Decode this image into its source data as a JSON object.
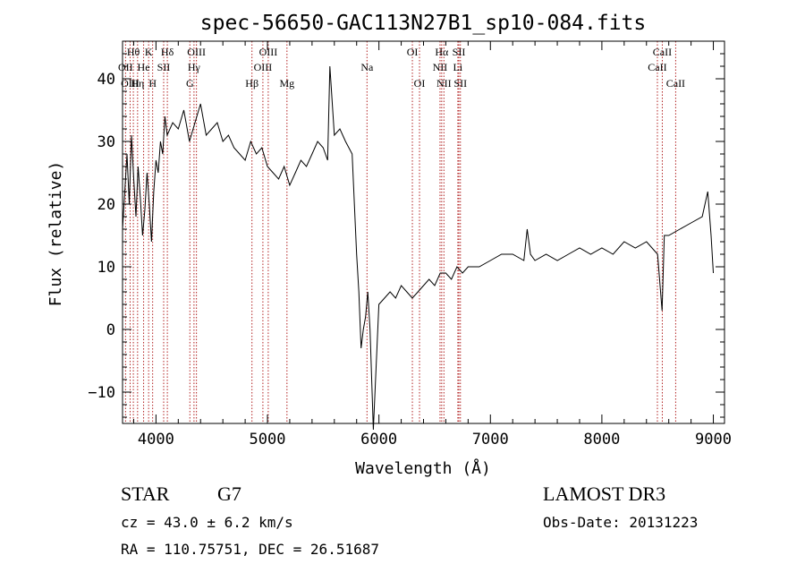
{
  "chart_data": {
    "type": "line",
    "title": "spec-56650-GAC113N27B1_sp10-084.fits",
    "xlabel": "Wavelength (Å)",
    "ylabel": "Flux (relative)",
    "xlim": [
      3700,
      9100
    ],
    "ylim": [
      -15,
      46
    ],
    "xticks": [
      "4000",
      "5000",
      "6000",
      "7000",
      "8000",
      "9000"
    ],
    "xtick_values": [
      4000,
      5000,
      6000,
      7000,
      8000,
      9000
    ],
    "yticks": [
      "−10",
      "0",
      "10",
      "20",
      "30",
      "40"
    ],
    "ytick_values": [
      -10,
      0,
      10,
      20,
      30,
      40
    ],
    "line_color": "#000000",
    "marker_color": "#b22222",
    "grid": false,
    "series": [
      {
        "x": [
          3700,
          3720,
          3740,
          3760,
          3780,
          3800,
          3820,
          3840,
          3860,
          3880,
          3900,
          3920,
          3940,
          3960,
          3980,
          4000,
          4020,
          4040,
          4060,
          4080,
          4100,
          4150,
          4200,
          4250,
          4300,
          4350,
          4400,
          4450,
          4500,
          4550,
          4600,
          4650,
          4700,
          4750,
          4800,
          4850,
          4900,
          4950,
          5000,
          5050,
          5100,
          5150,
          5200,
          5250,
          5300,
          5350,
          5400,
          5450,
          5500,
          5540,
          5560,
          5600,
          5650,
          5700,
          5730,
          5760,
          5780,
          5800,
          5820,
          5840,
          5860,
          5880,
          5900,
          5920,
          5950,
          6000,
          6050,
          6100,
          6150,
          6200,
          6250,
          6300,
          6350,
          6400,
          6450,
          6500,
          6550,
          6600,
          6650,
          6700,
          6750,
          6800,
          6900,
          7000,
          7100,
          7200,
          7300,
          7330,
          7360,
          7400,
          7500,
          7600,
          7700,
          7800,
          7900,
          8000,
          8100,
          8200,
          8300,
          8400,
          8500,
          8540,
          8560,
          8600,
          8700,
          8800,
          8900,
          8950,
          8980,
          9000
        ],
        "y": [
          16,
          22,
          28,
          20,
          31,
          24,
          18,
          26,
          21,
          15,
          19,
          25,
          20,
          14,
          22,
          27,
          25,
          30,
          28,
          34,
          31,
          33,
          32,
          35,
          30,
          33,
          36,
          31,
          32,
          33,
          30,
          31,
          29,
          28,
          27,
          30,
          28,
          29,
          26,
          25,
          24,
          26,
          23,
          25,
          27,
          26,
          28,
          30,
          29,
          27,
          42,
          31,
          32,
          30,
          29,
          28,
          20,
          12,
          6,
          -3,
          0,
          2,
          6,
          0,
          -16,
          4,
          5,
          6,
          5,
          7,
          6,
          5,
          6,
          7,
          8,
          7,
          9,
          9,
          8,
          10,
          9,
          10,
          10,
          11,
          12,
          12,
          11,
          16,
          12,
          11,
          12,
          11,
          12,
          13,
          12,
          13,
          12,
          14,
          13,
          14,
          12,
          3,
          15,
          15,
          16,
          17,
          18,
          22,
          15,
          9
        ]
      }
    ],
    "line_markers": {
      "top": [
        {
          "label": "Hθ",
          "x": 3797
        },
        {
          "label": "K",
          "x": 3934
        },
        {
          "label": "Hδ",
          "x": 4102
        },
        {
          "label": "OIII",
          "x": 4363
        },
        {
          "label": "OIII",
          "x": 5007
        },
        {
          "label": "OI",
          "x": 6300
        },
        {
          "label": "Hα",
          "x": 6563
        },
        {
          "label": "SII",
          "x": 6717
        },
        {
          "label": "CaII",
          "x": 8542
        }
      ],
      "mid": [
        {
          "label": "OII",
          "x": 3727
        },
        {
          "label": "He",
          "x": 3889
        },
        {
          "label": "SII",
          "x": 4069
        },
        {
          "label": "Hγ",
          "x": 4341
        },
        {
          "label": "OIII",
          "x": 4959
        },
        {
          "label": "Na",
          "x": 5893
        },
        {
          "label": "NII",
          "x": 6548
        },
        {
          "label": "Li",
          "x": 6708
        },
        {
          "label": "CaII",
          "x": 8498
        }
      ],
      "low": [
        {
          "label": "OIII",
          "x": 3768
        },
        {
          "label": "Hη",
          "x": 3835
        },
        {
          "label": "H",
          "x": 3970
        },
        {
          "label": "G",
          "x": 4304
        },
        {
          "label": "Hβ",
          "x": 4861
        },
        {
          "label": "Mg",
          "x": 5175
        },
        {
          "label": "OI",
          "x": 6364
        },
        {
          "label": "NII",
          "x": 6583
        },
        {
          "label": "SII",
          "x": 6731
        },
        {
          "label": "CaII",
          "x": 8662
        }
      ]
    }
  },
  "info": {
    "class_label": "STAR",
    "subclass_label": "G7",
    "cz_text": "cz = 43.0 ± 6.2 km/s",
    "radec_text": "RA = 110.75751, DEC =  26.51687",
    "survey_label": "LAMOST DR3",
    "obs_date_text": "Obs-Date: 20131223"
  }
}
